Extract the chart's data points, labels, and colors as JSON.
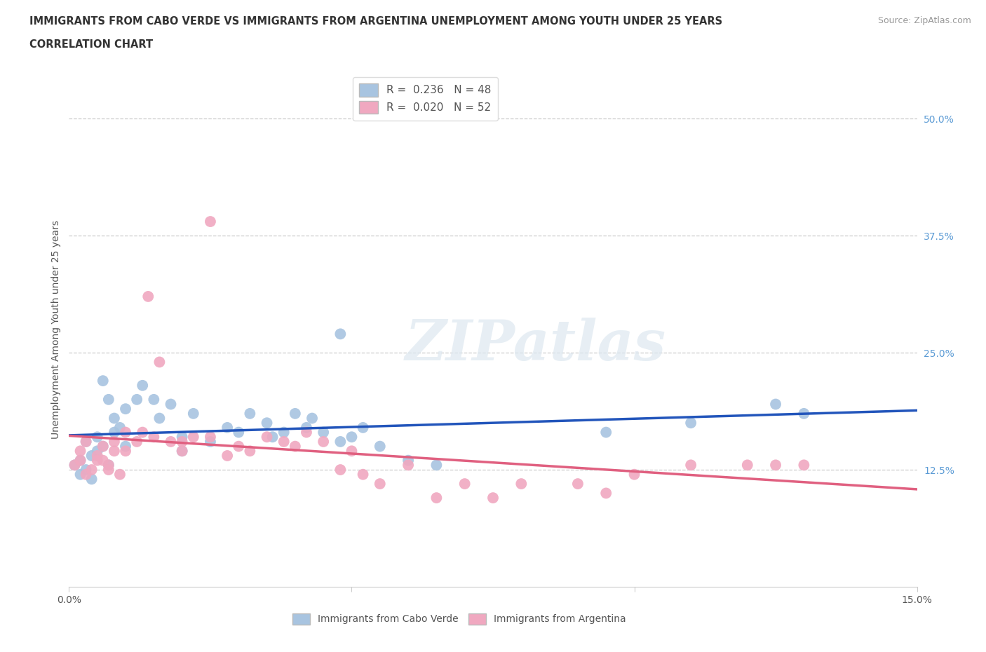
{
  "title_line1": "IMMIGRANTS FROM CABO VERDE VS IMMIGRANTS FROM ARGENTINA UNEMPLOYMENT AMONG YOUTH UNDER 25 YEARS",
  "title_line2": "CORRELATION CHART",
  "source": "Source: ZipAtlas.com",
  "ylabel": "Unemployment Among Youth under 25 years",
  "xlim": [
    0.0,
    0.15
  ],
  "ylim": [
    0.0,
    0.55
  ],
  "cabo_verde_color": "#a8c4e0",
  "argentina_color": "#f0a8c0",
  "cabo_verde_line_color": "#2255bb",
  "argentina_line_color": "#e06080",
  "cabo_R": 0.236,
  "cabo_N": 48,
  "arg_R": 0.02,
  "arg_N": 52,
  "cabo_verde_x": [
    0.001,
    0.002,
    0.002,
    0.003,
    0.003,
    0.004,
    0.004,
    0.005,
    0.005,
    0.006,
    0.006,
    0.007,
    0.007,
    0.008,
    0.008,
    0.009,
    0.01,
    0.01,
    0.012,
    0.013,
    0.015,
    0.016,
    0.018,
    0.02,
    0.02,
    0.022,
    0.025,
    0.028,
    0.03,
    0.032,
    0.035,
    0.036,
    0.038,
    0.04,
    0.042,
    0.043,
    0.045,
    0.048,
    0.05,
    0.052,
    0.055,
    0.06,
    0.065,
    0.095,
    0.11,
    0.125,
    0.13,
    0.048
  ],
  "cabo_verde_y": [
    0.13,
    0.135,
    0.12,
    0.125,
    0.155,
    0.115,
    0.14,
    0.145,
    0.16,
    0.22,
    0.15,
    0.2,
    0.13,
    0.165,
    0.18,
    0.17,
    0.19,
    0.15,
    0.2,
    0.215,
    0.2,
    0.18,
    0.195,
    0.16,
    0.145,
    0.185,
    0.155,
    0.17,
    0.165,
    0.185,
    0.175,
    0.16,
    0.165,
    0.185,
    0.17,
    0.18,
    0.165,
    0.155,
    0.16,
    0.17,
    0.15,
    0.135,
    0.13,
    0.165,
    0.175,
    0.195,
    0.185,
    0.27
  ],
  "argentina_x": [
    0.001,
    0.002,
    0.002,
    0.003,
    0.003,
    0.004,
    0.005,
    0.005,
    0.006,
    0.006,
    0.007,
    0.007,
    0.008,
    0.008,
    0.009,
    0.01,
    0.01,
    0.012,
    0.013,
    0.014,
    0.015,
    0.016,
    0.018,
    0.02,
    0.02,
    0.022,
    0.025,
    0.025,
    0.028,
    0.03,
    0.032,
    0.035,
    0.038,
    0.04,
    0.042,
    0.045,
    0.048,
    0.05,
    0.052,
    0.055,
    0.06,
    0.065,
    0.07,
    0.075,
    0.08,
    0.09,
    0.095,
    0.1,
    0.11,
    0.12,
    0.125,
    0.13
  ],
  "argentina_y": [
    0.13,
    0.135,
    0.145,
    0.12,
    0.155,
    0.125,
    0.14,
    0.135,
    0.15,
    0.135,
    0.13,
    0.125,
    0.145,
    0.155,
    0.12,
    0.165,
    0.145,
    0.155,
    0.165,
    0.31,
    0.16,
    0.24,
    0.155,
    0.155,
    0.145,
    0.16,
    0.16,
    0.39,
    0.14,
    0.15,
    0.145,
    0.16,
    0.155,
    0.15,
    0.165,
    0.155,
    0.125,
    0.145,
    0.12,
    0.11,
    0.13,
    0.095,
    0.11,
    0.095,
    0.11,
    0.11,
    0.1,
    0.12,
    0.13,
    0.13,
    0.13,
    0.13
  ],
  "background_color": "#ffffff",
  "grid_color": "#cccccc",
  "watermark_text": "ZIPatlas",
  "legend_blue_label": "R =  0.236   N = 48",
  "legend_pink_label": "R =  0.020   N = 52",
  "bottom_legend_blue": "Immigrants from Cabo Verde",
  "bottom_legend_pink": "Immigrants from Argentina"
}
